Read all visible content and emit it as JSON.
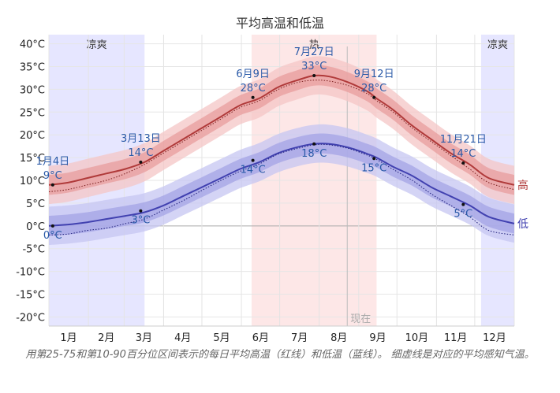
{
  "chart_data": {
    "type": "line",
    "title": "平均高温和低温",
    "x_ticks": [
      "1月",
      "2月",
      "3月",
      "4月",
      "5月",
      "6月",
      "7月",
      "8月",
      "9月",
      "10月",
      "11月",
      "12月"
    ],
    "y_ticks": [
      "40°C",
      "35°C",
      "30°C",
      "25°C",
      "20°C",
      "15°C",
      "10°C",
      "5°C",
      "0°C",
      "-5°C",
      "-10°C",
      "-15°C",
      "-20°C"
    ],
    "ylim": [
      -22,
      42
    ],
    "xlim": [
      0,
      365
    ],
    "grid": true,
    "seasons": [
      {
        "label": "凉爽",
        "start_day": 0,
        "end_day": 75,
        "color": "#e6e6ff"
      },
      {
        "label": "热",
        "start_day": 159,
        "end_day": 257,
        "color": "#fde7e7"
      },
      {
        "label": "凉爽",
        "start_day": 339,
        "end_day": 365,
        "color": "#e6e6ff"
      }
    ],
    "now_label": "现在",
    "now_day": 234,
    "series": [
      {
        "name": "高",
        "color": "#b03a3a",
        "x": [
          0,
          15,
          30,
          45,
          60,
          75,
          90,
          105,
          120,
          135,
          150,
          165,
          180,
          195,
          208,
          220,
          235,
          250,
          257,
          270,
          285,
          300,
          315,
          330,
          345,
          365
        ],
        "values": [
          9,
          9.5,
          10.5,
          11.5,
          12.5,
          14,
          16.5,
          19,
          21.5,
          24,
          26.5,
          28,
          30.5,
          32,
          33,
          32.8,
          31.5,
          29.5,
          28,
          25.5,
          22,
          19,
          16,
          13.5,
          10.5,
          9
        ],
        "feels_like": [
          7.5,
          8,
          9,
          10,
          11.5,
          13.5,
          16,
          18.5,
          21,
          23.5,
          26,
          27.5,
          30,
          31.5,
          32,
          31.8,
          30.8,
          29,
          27.5,
          25,
          21.5,
          18.5,
          15.5,
          12.5,
          9.5,
          8
        ]
      },
      {
        "name": "低",
        "color": "#4141b0",
        "x": [
          0,
          15,
          30,
          45,
          60,
          75,
          90,
          105,
          120,
          135,
          150,
          165,
          180,
          195,
          208,
          220,
          235,
          250,
          257,
          270,
          285,
          300,
          315,
          330,
          345,
          365
        ],
        "values": [
          0,
          0.3,
          0.8,
          1.5,
          2.2,
          3,
          4.5,
          6.5,
          8.5,
          10.5,
          12.5,
          14,
          16,
          17.3,
          18,
          18,
          17.2,
          15.8,
          15,
          13,
          11,
          8.5,
          6.5,
          4.5,
          2,
          0.5
        ],
        "feels_like": [
          -2,
          -1.8,
          -1,
          -0.5,
          0.5,
          1.5,
          3.5,
          5.5,
          7.8,
          10,
          12,
          13.6,
          15.8,
          17,
          17.8,
          17.8,
          17,
          15.5,
          14.6,
          12.4,
          10,
          7,
          4.5,
          2,
          -1,
          -2
        ]
      }
    ],
    "annotations": [
      {
        "date": "1月4日",
        "value": "9°C",
        "day": 3,
        "temp": 9,
        "pos": "above"
      },
      {
        "date": "",
        "value": "0°C",
        "day": 3,
        "temp": 0,
        "pos": "below"
      },
      {
        "date": "3月13日",
        "value": "14°C",
        "day": 72,
        "temp": 14,
        "pos": "above"
      },
      {
        "date": "",
        "value": "3°C",
        "day": 72,
        "temp": 3.3,
        "pos": "below"
      },
      {
        "date": "6月9日",
        "value": "28°C",
        "day": 160,
        "temp": 28.2,
        "pos": "above"
      },
      {
        "date": "",
        "value": "14°C",
        "day": 160,
        "temp": 14.4,
        "pos": "below"
      },
      {
        "date": "7月27日",
        "value": "33°C",
        "day": 208,
        "temp": 33,
        "pos": "above"
      },
      {
        "date": "",
        "value": "18°C",
        "day": 208,
        "temp": 18,
        "pos": "below"
      },
      {
        "date": "9月12日",
        "value": "28°C",
        "day": 255,
        "temp": 28.2,
        "pos": "above"
      },
      {
        "date": "",
        "value": "15°C",
        "day": 255,
        "temp": 14.8,
        "pos": "below"
      },
      {
        "date": "11月21日",
        "value": "14°C",
        "day": 325,
        "temp": 13.8,
        "pos": "above"
      },
      {
        "date": "",
        "value": "5°C",
        "day": 325,
        "temp": 4.7,
        "pos": "below"
      }
    ]
  },
  "caption": "用第25-75和第10-90百分位区间表示的每日平均高温（红线）和低温（蓝线）。 细虚线是对应的平均感知气温。"
}
